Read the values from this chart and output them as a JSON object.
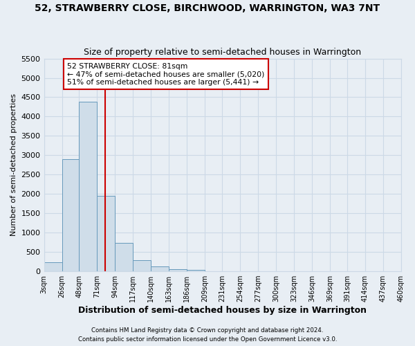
{
  "title": "52, STRAWBERRY CLOSE, BIRCHWOOD, WARRINGTON, WA3 7NT",
  "subtitle": "Size of property relative to semi-detached houses in Warrington",
  "xlabel": "Distribution of semi-detached houses by size in Warrington",
  "ylabel": "Number of semi-detached properties",
  "bin_edges": [
    3,
    26,
    48,
    71,
    94,
    117,
    140,
    163,
    186,
    209,
    231,
    254,
    277,
    300,
    323,
    346,
    369,
    391,
    414,
    437,
    460
  ],
  "bin_counts": [
    240,
    2900,
    4380,
    1950,
    740,
    295,
    130,
    60,
    45,
    0,
    0,
    0,
    0,
    0,
    0,
    0,
    0,
    0,
    0,
    0
  ],
  "bar_color": "#cfdde9",
  "bar_edge_color": "#6699bb",
  "property_size": 81,
  "property_line_color": "#cc0000",
  "annotation_line1": "52 STRAWBERRY CLOSE: 81sqm",
  "annotation_line2": "← 47% of semi-detached houses are smaller (5,020)",
  "annotation_line3": "51% of semi-detached houses are larger (5,441) →",
  "annotation_box_color": "#ffffff",
  "annotation_box_edge_color": "#cc0000",
  "ylim": [
    0,
    5500
  ],
  "yticks": [
    0,
    500,
    1000,
    1500,
    2000,
    2500,
    3000,
    3500,
    4000,
    4500,
    5000,
    5500
  ],
  "tick_labels": [
    "3sqm",
    "26sqm",
    "48sqm",
    "71sqm",
    "94sqm",
    "117sqm",
    "140sqm",
    "163sqm",
    "186sqm",
    "209sqm",
    "231sqm",
    "254sqm",
    "277sqm",
    "300sqm",
    "323sqm",
    "346sqm",
    "369sqm",
    "391sqm",
    "414sqm",
    "437sqm",
    "460sqm"
  ],
  "footer_line1": "Contains HM Land Registry data © Crown copyright and database right 2024.",
  "footer_line2": "Contains public sector information licensed under the Open Government Licence v3.0.",
  "grid_color": "#ccd9e6",
  "background_color": "#ffffff",
  "fig_background": "#e8eef4"
}
